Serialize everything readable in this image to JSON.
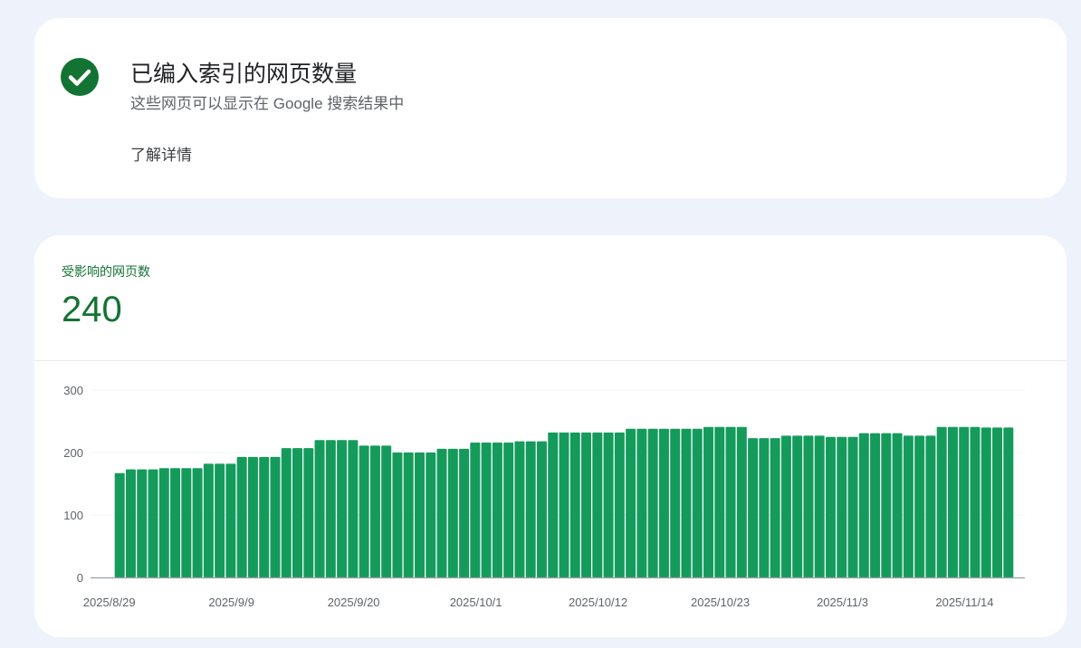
{
  "status_card": {
    "icon": "check-circle-icon",
    "title": "已编入索引的网页数量",
    "subtitle": "这些网页可以显示在 Google 搜索结果中",
    "learn_more": "了解详情"
  },
  "metric": {
    "label": "受影响的网页数",
    "value": "240"
  },
  "colors": {
    "accent": "#137333",
    "bar": "#149b5c"
  },
  "chart_data": {
    "type": "bar",
    "ylim": [
      0,
      300
    ],
    "yticks": [
      0,
      100,
      200,
      300
    ],
    "grid": true,
    "first_date": "2025/8/29",
    "last_date": "2025/11/17",
    "xtick_labels": [
      "2025/8/29",
      "2025/9/9",
      "2025/9/20",
      "2025/10/1",
      "2025/10/12",
      "2025/10/23",
      "2025/11/3",
      "2025/11/14"
    ],
    "values": [
      167,
      173,
      173,
      173,
      175,
      175,
      175,
      175,
      182,
      182,
      182,
      193,
      193,
      193,
      193,
      207,
      207,
      207,
      220,
      220,
      220,
      220,
      211,
      211,
      211,
      200,
      200,
      200,
      200,
      206,
      206,
      206,
      216,
      216,
      216,
      216,
      218,
      218,
      218,
      232,
      232,
      232,
      232,
      232,
      232,
      232,
      238,
      238,
      238,
      238,
      238,
      238,
      238,
      241,
      241,
      241,
      241,
      223,
      223,
      223,
      227,
      227,
      227,
      227,
      225,
      225,
      225,
      231,
      231,
      231,
      231,
      227,
      227,
      227,
      241,
      241,
      241,
      241,
      240,
      240,
      240
    ]
  }
}
